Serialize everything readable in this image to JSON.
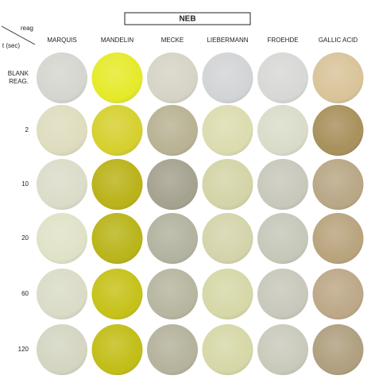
{
  "header": {
    "title": "NEB"
  },
  "corner": {
    "column_label": "reag",
    "row_label": "t (sec)"
  },
  "columns": [
    "MARQUIS",
    "MANDELIN",
    "MECKE",
    "LIEBERMANN",
    "FROEHDE",
    "GALLIC ACID"
  ],
  "rows": [
    [
      "BLANK",
      "REAG."
    ],
    [
      "2"
    ],
    [
      "10"
    ],
    [
      "20"
    ],
    [
      "60"
    ],
    [
      "120"
    ]
  ]
}
